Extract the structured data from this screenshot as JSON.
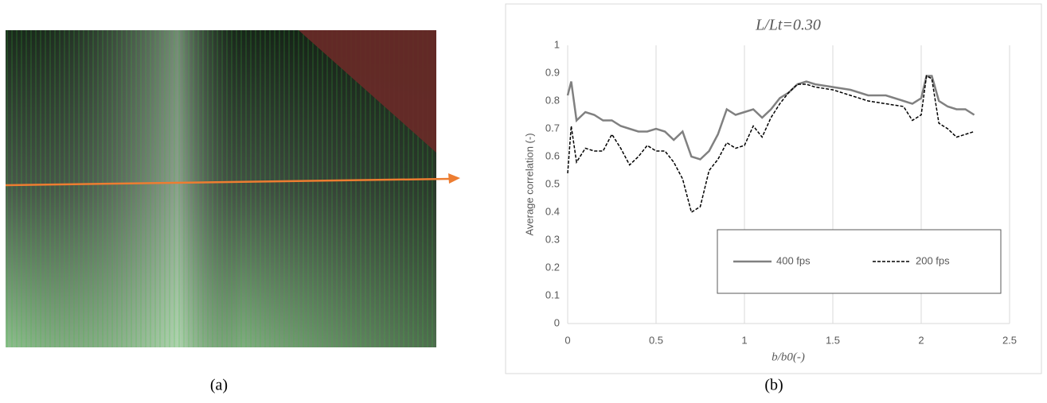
{
  "panel_labels": [
    "(a)",
    "(b)"
  ],
  "chart_data": {
    "type": "line",
    "title": "L/Lt=0.30",
    "x_label": "b/b0(-)",
    "y_label": "Average correlation (-)",
    "x": [
      0,
      0.02,
      0.05,
      0.1,
      0.15,
      0.2,
      0.25,
      0.3,
      0.35,
      0.4,
      0.45,
      0.5,
      0.55,
      0.6,
      0.65,
      0.7,
      0.75,
      0.8,
      0.85,
      0.9,
      0.95,
      1.0,
      1.05,
      1.1,
      1.15,
      1.2,
      1.25,
      1.3,
      1.35,
      1.4,
      1.5,
      1.6,
      1.7,
      1.8,
      1.9,
      1.95,
      2.0,
      2.03,
      2.06,
      2.1,
      2.15,
      2.2,
      2.25,
      2.3
    ],
    "series": [
      {
        "name": "400 fps",
        "color": "#808080",
        "dash": false,
        "values": [
          0.82,
          0.87,
          0.73,
          0.76,
          0.75,
          0.73,
          0.73,
          0.71,
          0.7,
          0.69,
          0.69,
          0.7,
          0.69,
          0.66,
          0.69,
          0.6,
          0.59,
          0.62,
          0.68,
          0.77,
          0.75,
          0.76,
          0.77,
          0.74,
          0.77,
          0.81,
          0.83,
          0.86,
          0.87,
          0.86,
          0.85,
          0.84,
          0.82,
          0.82,
          0.8,
          0.79,
          0.81,
          0.89,
          0.89,
          0.8,
          0.78,
          0.77,
          0.77,
          0.75
        ]
      },
      {
        "name": "200 fps",
        "color": "#000000",
        "dash": true,
        "values": [
          0.54,
          0.71,
          0.58,
          0.63,
          0.62,
          0.62,
          0.68,
          0.63,
          0.57,
          0.6,
          0.64,
          0.62,
          0.62,
          0.58,
          0.52,
          0.4,
          0.42,
          0.55,
          0.59,
          0.65,
          0.63,
          0.64,
          0.71,
          0.67,
          0.74,
          0.79,
          0.83,
          0.86,
          0.86,
          0.85,
          0.84,
          0.82,
          0.8,
          0.79,
          0.78,
          0.73,
          0.75,
          0.89,
          0.88,
          0.72,
          0.7,
          0.67,
          0.68,
          0.69
        ]
      }
    ],
    "xlim": [
      0,
      2.5
    ],
    "xticks": [
      0,
      0.5,
      1,
      1.5,
      2,
      2.5
    ],
    "ylim": [
      0,
      1
    ],
    "yticks": [
      0,
      0.1,
      0.2,
      0.3,
      0.4,
      0.5,
      0.6,
      0.7,
      0.8,
      0.9,
      1
    ],
    "grid": "x",
    "legend": "lower-right"
  }
}
